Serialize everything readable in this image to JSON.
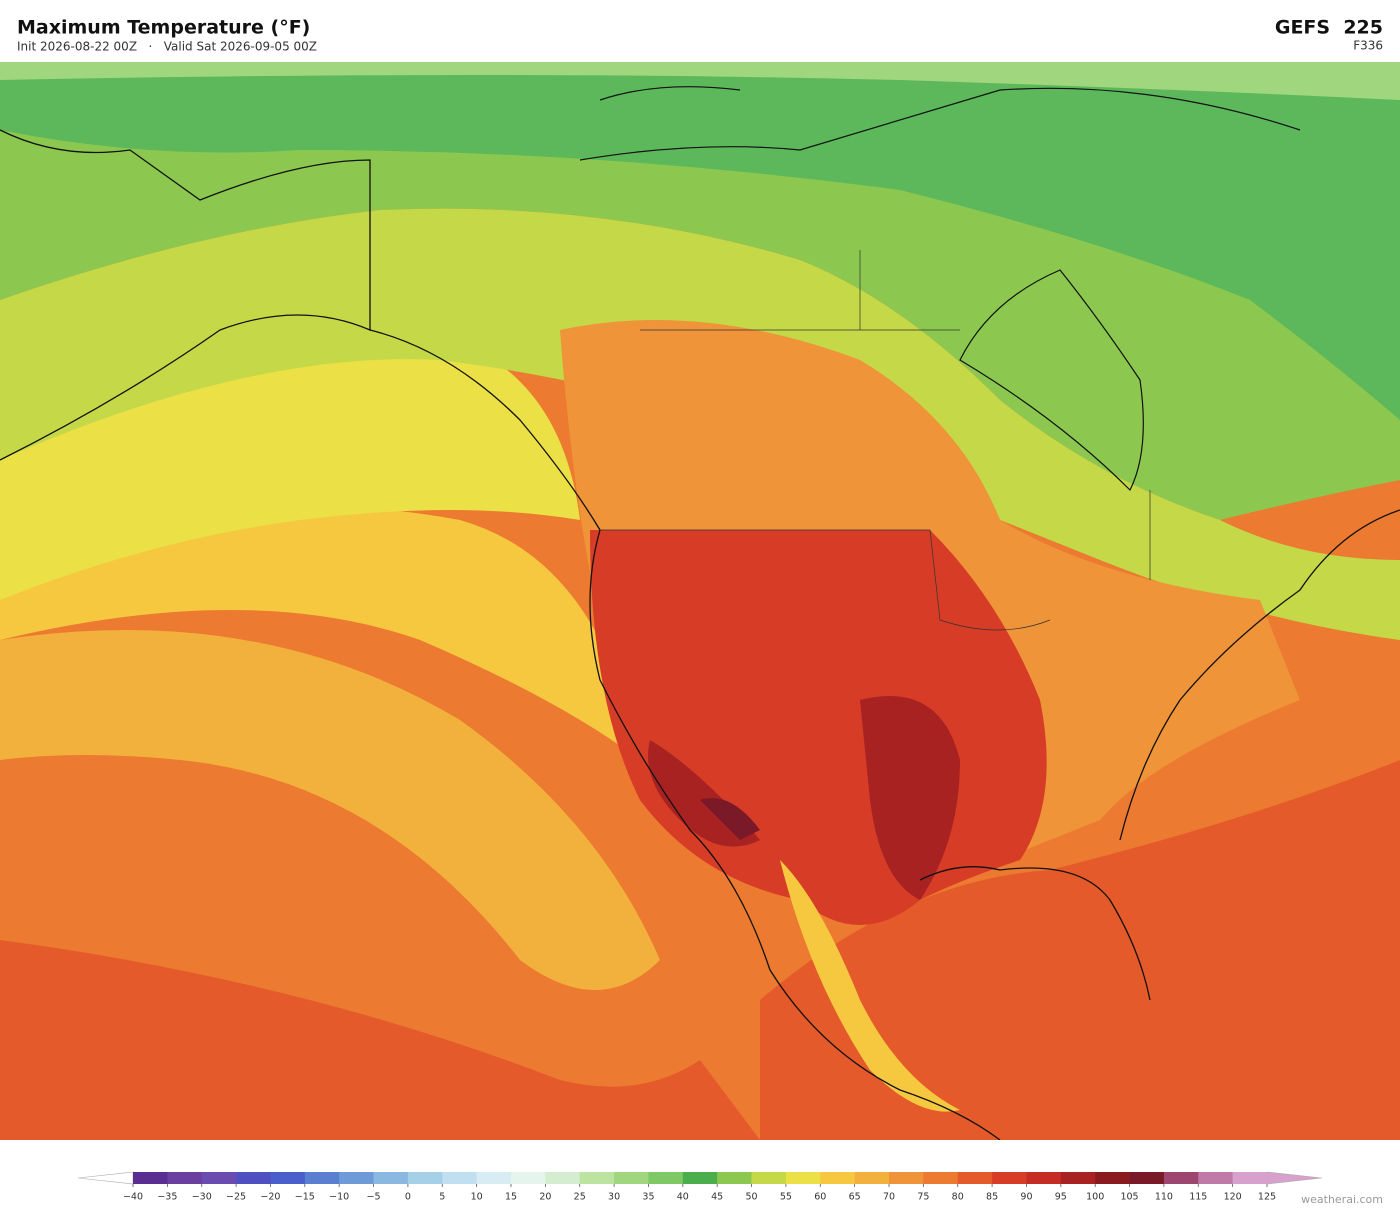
{
  "header": {
    "title": "Maximum Temperature  (°F)",
    "subtitle": "Init 2026-08-22 00Z   ·   Valid Sat 2026-09-05 00Z",
    "model": "GEFS  225",
    "forecast_hour": "F336"
  },
  "colorbar": {
    "ticks": [
      {
        "value": -40,
        "label": "−40"
      },
      {
        "value": -35,
        "label": "−35"
      },
      {
        "value": -30,
        "label": "−30"
      },
      {
        "value": -25,
        "label": "−25"
      },
      {
        "value": -20,
        "label": "−20"
      },
      {
        "value": -15,
        "label": "−15"
      },
      {
        "value": -10,
        "label": "−10"
      },
      {
        "value": -5,
        "label": "−5"
      },
      0,
      5,
      10,
      15,
      20,
      25,
      30,
      35,
      40,
      45,
      50,
      55,
      60,
      65,
      70,
      75,
      80,
      85,
      90,
      95,
      100,
      105,
      110,
      115,
      120,
      125
    ],
    "colors": [
      "#5a2d91",
      "#6a3fa0",
      "#6a4cb0",
      "#4e4fc0",
      "#4a5fcc",
      "#5a7fd0",
      "#6e9ad8",
      "#8ab8e0",
      "#a6cfe8",
      "#c0dff0",
      "#d8ecf4",
      "#e6f4ee",
      "#d4ecd0",
      "#bde3a0",
      "#9fd67e",
      "#7fc866",
      "#4cad4c",
      "#8cc850",
      "#c4d848",
      "#ebe045",
      "#f5c840",
      "#f2b03c",
      "#ef9438",
      "#ec7a30",
      "#e55a2a",
      "#d63c26",
      "#c42c24",
      "#a82222",
      "#8a1a1e",
      "#7a1a28",
      "#9c4670",
      "#c07aa8",
      "#d8a0cc"
    ],
    "under_color": "#ffffff",
    "over_color": "#d8a0cc"
  },
  "watermark": "weatherai.com"
}
